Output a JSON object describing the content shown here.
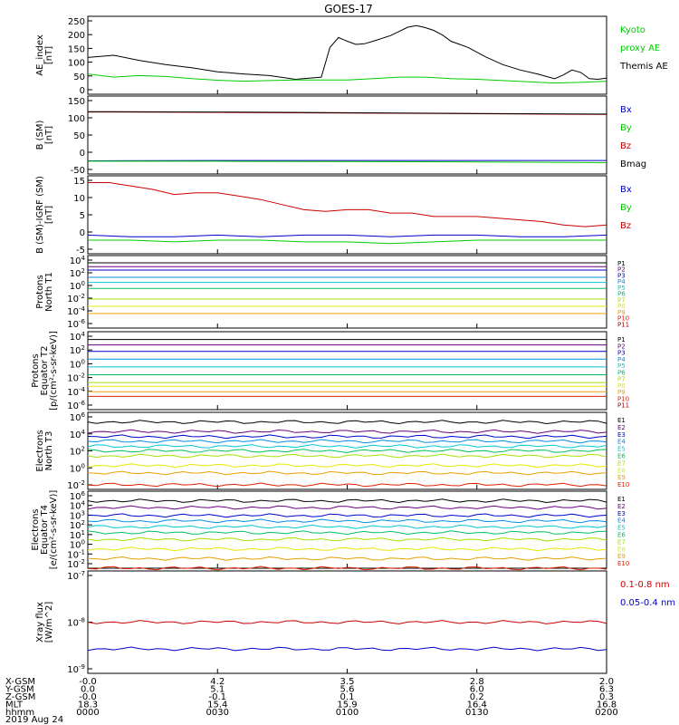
{
  "title": "GOES-17",
  "colors": {
    "black": "#000000",
    "green": "#00cc00",
    "blue": "#0000cc",
    "red": "#cc0000",
    "P1": "#000000",
    "P2": "#6a0080",
    "P3": "#0000cc",
    "P4": "#0090e0",
    "P5": "#00c8d8",
    "P6": "#00c060",
    "P7": "#a8e000",
    "P8": "#e8e800",
    "P9": "#e8a000",
    "P10": "#e02000",
    "P11": "#900000"
  },
  "panels": [
    {
      "key": "ae",
      "ylabel": [
        "AE_index",
        "[nT]"
      ],
      "yticks": [
        "250",
        "200",
        "150",
        "100",
        "50",
        "0"
      ],
      "legend": [
        {
          "text": "Kyoto",
          "color": "#00cc00"
        },
        {
          "text": "proxy AE",
          "color": "#00cc00"
        },
        {
          "text": "Themis AE",
          "color": "#000000"
        }
      ]
    },
    {
      "key": "bsm",
      "ylabel": [
        "B (SM)",
        "[nT]"
      ],
      "yticks": [
        "150",
        "100",
        "50",
        "0",
        "-50"
      ],
      "legend": [
        {
          "text": "Bx",
          "color": "#0000cc"
        },
        {
          "text": "By",
          "color": "#00cc00"
        },
        {
          "text": "Bz",
          "color": "#cc0000"
        },
        {
          "text": "Bmag",
          "color": "#000000"
        }
      ]
    },
    {
      "key": "bigrf",
      "ylabel": [
        "B (SM)-IGRF (SM)",
        "[nT]"
      ],
      "yticks": [
        "15",
        "10",
        "5",
        "0",
        "-5"
      ],
      "legend": [
        {
          "text": "Bx",
          "color": "#0000cc"
        },
        {
          "text": "By",
          "color": "#00cc00"
        },
        {
          "text": "Bz",
          "color": "#cc0000"
        }
      ]
    },
    {
      "key": "pn",
      "ylabel": [
        "Protons",
        "North T1"
      ],
      "yticks": [
        "10^4",
        "10^2",
        "10^0",
        "10^-2",
        "10^-4",
        "10^-6"
      ],
      "legend_prefix": "P"
    },
    {
      "key": "pe",
      "ylabel": [
        "Protons",
        "Equator T2",
        "[p/(cm²-s-sr-keV)]"
      ],
      "yticks": [
        "10^4",
        "10^2",
        "10^0",
        "10^-2",
        "10^-4",
        "10^-6"
      ],
      "legend_prefix": "P"
    },
    {
      "key": "en",
      "ylabel": [
        "Electrons",
        "North T3"
      ],
      "yticks": [
        "10^6",
        "10^4",
        "10^2",
        "10^0",
        "10^-2"
      ],
      "legend_prefix": "E"
    },
    {
      "key": "ee",
      "ylabel": [
        "Electrons",
        "Equator T4",
        "[e/(cm²-s-sr-keV)]"
      ],
      "yticks": [
        "10^6",
        "10^4",
        "10^3",
        "10^2",
        "10^1",
        "10^0",
        "10^-1",
        "10^-2"
      ],
      "legend_prefix": "E"
    },
    {
      "key": "xray",
      "ylabel": [
        "Xray flux",
        "[W/m^2]"
      ],
      "yticks": [
        "10^-7",
        "10^-8",
        "10^-9"
      ],
      "legend": [
        {
          "text": "0.1-0.8 nm",
          "color": "#cc0000"
        },
        {
          "text": "0.05-0.4 nm",
          "color": "#0000cc"
        }
      ]
    }
  ],
  "footer": {
    "rows": [
      {
        "label": "X-GSM",
        "values": [
          "-0.0",
          "4.2",
          "3.5",
          "2.8",
          "2.0"
        ]
      },
      {
        "label": "Y-GSM",
        "values": [
          "0.0",
          "5.1",
          "5.6",
          "6.0",
          "6.3"
        ]
      },
      {
        "label": "Z-GSM",
        "values": [
          "-0.0",
          "-0.1",
          "0.1",
          "0.2",
          "0.3"
        ]
      },
      {
        "label": "MLT",
        "values": [
          "18.3",
          "15.4",
          "15.9",
          "16.4",
          "16.8"
        ]
      },
      {
        "label": "hhmm",
        "values": [
          "0000",
          "0030",
          "0100",
          "0130",
          "0200"
        ]
      }
    ],
    "date": "2019 Aug 24"
  },
  "chart_data": [
    {
      "type": "line",
      "title": "GOES-17",
      "ylabel": "AE_index [nT]",
      "x_unit": "minutes since 0000 UT",
      "ylim": [
        0,
        250
      ],
      "series": [
        {
          "name": "Themis AE",
          "color": "#000000",
          "x": [
            0,
            6,
            12,
            18,
            24,
            30,
            36,
            42,
            48,
            54,
            56,
            58,
            60,
            62,
            64,
            66,
            70,
            74,
            76,
            78,
            80,
            82,
            84,
            88,
            92,
            96,
            100,
            104,
            108,
            110,
            112,
            114,
            116,
            118,
            120
          ],
          "y": [
            118,
            125,
            108,
            95,
            85,
            72,
            65,
            60,
            48,
            55,
            150,
            182,
            170,
            160,
            162,
            170,
            188,
            215,
            220,
            214,
            205,
            190,
            170,
            150,
            120,
            95,
            78,
            65,
            50,
            62,
            78,
            70,
            50,
            48,
            52
          ]
        },
        {
          "name": "Kyoto proxy AE",
          "color": "#00cc00",
          "x": [
            0,
            6,
            12,
            18,
            24,
            30,
            36,
            42,
            48,
            54,
            60,
            66,
            72,
            78,
            84,
            90,
            96,
            102,
            108,
            114,
            120
          ],
          "y": [
            65,
            55,
            60,
            57,
            50,
            45,
            42,
            44,
            46,
            46,
            46,
            50,
            55,
            55,
            50,
            48,
            44,
            40,
            36,
            38,
            42
          ]
        }
      ]
    },
    {
      "type": "line",
      "ylabel": "B (SM) [nT]",
      "ylim": [
        -60,
        160
      ],
      "series": [
        {
          "name": "Bz",
          "color": "#cc0000",
          "x": [
            0,
            30,
            60,
            90,
            120
          ],
          "y": [
            115,
            114,
            112,
            110,
            108
          ]
        },
        {
          "name": "Bmag",
          "color": "#000000",
          "x": [
            0,
            30,
            60,
            90,
            120
          ],
          "y": [
            116,
            115,
            113,
            111,
            109
          ]
        },
        {
          "name": "Bx",
          "color": "#0000cc",
          "x": [
            0,
            30,
            60,
            90,
            120
          ],
          "y": [
            -23,
            -22,
            -22,
            -22,
            -22
          ]
        },
        {
          "name": "By",
          "color": "#00cc00",
          "x": [
            0,
            30,
            60,
            90,
            120
          ],
          "y": [
            -24,
            -24,
            -25,
            -26,
            -28
          ]
        }
      ]
    },
    {
      "type": "line",
      "ylabel": "B (SM)-IGRF (SM) [nT]",
      "ylim": [
        -6,
        17
      ],
      "series": [
        {
          "name": "Bz",
          "color": "#cc0000",
          "x": [
            0,
            5,
            10,
            15,
            20,
            25,
            30,
            35,
            40,
            45,
            50,
            55,
            60,
            65,
            70,
            75,
            80,
            85,
            90,
            95,
            100,
            105,
            110,
            115,
            120
          ],
          "y": [
            15,
            15,
            14,
            13,
            11.5,
            12,
            12,
            11,
            10,
            8.5,
            7,
            6.5,
            7,
            7,
            6,
            6,
            5,
            5,
            5,
            4.5,
            4,
            3.5,
            2.5,
            2,
            2.5
          ]
        },
        {
          "name": "Bx",
          "color": "#0000cc",
          "x": [
            0,
            10,
            20,
            30,
            40,
            50,
            60,
            70,
            80,
            90,
            100,
            110,
            120
          ],
          "y": [
            -0.5,
            -1,
            -1,
            -0.5,
            -1,
            -0.5,
            -0.5,
            -1,
            -0.5,
            -0.5,
            -1,
            -1,
            -0.5
          ]
        },
        {
          "name": "By",
          "color": "#00cc00",
          "x": [
            0,
            10,
            20,
            30,
            40,
            50,
            60,
            70,
            80,
            90,
            100,
            110,
            120
          ],
          "y": [
            -2,
            -2,
            -2.5,
            -2,
            -2,
            -2.5,
            -2.5,
            -3,
            -2.5,
            -2,
            -2,
            -2,
            -2
          ]
        }
      ]
    },
    {
      "type": "line",
      "ylabel": "Protons North T1",
      "yscale": "log",
      "ylim": [
        "1e-6",
        "1e4"
      ],
      "series": [
        {
          "name": "P1",
          "values": [
            "1e3"
          ]
        },
        {
          "name": "P2",
          "values": [
            "3e2"
          ]
        },
        {
          "name": "P3",
          "values": [
            "1e2"
          ]
        },
        {
          "name": "P4",
          "values": [
            "1e1"
          ]
        },
        {
          "name": "P5",
          "values": [
            "2e0"
          ]
        },
        {
          "name": "P6",
          "values": [
            "3e-1"
          ]
        },
        {
          "name": "P7",
          "values": [
            "1e-2"
          ]
        },
        {
          "name": "P8",
          "values": [
            "1e-3"
          ]
        },
        {
          "name": "P9",
          "values": [
            "1e-4"
          ]
        },
        {
          "name": "P10",
          "values": []
        },
        {
          "name": "P11",
          "values": []
        }
      ]
    },
    {
      "type": "line",
      "ylabel": "Protons Equator T2 [p/(cm²-s-sr-keV)]",
      "yscale": "log",
      "ylim": [
        "1e-6",
        "1e4"
      ],
      "series": [
        {
          "name": "P1",
          "values": [
            "1e3"
          ]
        },
        {
          "name": "P2",
          "values": [
            "2e2"
          ]
        },
        {
          "name": "P3",
          "values": [
            "3e1"
          ]
        },
        {
          "name": "P4",
          "values": [
            "3e0"
          ]
        },
        {
          "name": "P5",
          "values": [
            "3e-1"
          ]
        },
        {
          "name": "P6",
          "values": [
            "3e-2"
          ]
        },
        {
          "name": "P7",
          "values": [
            "3e-3"
          ]
        },
        {
          "name": "P8",
          "values": [
            "1e-3"
          ]
        },
        {
          "name": "P9",
          "values": [
            "2e-4"
          ]
        },
        {
          "name": "P10",
          "values": [
            "5e-5"
          ]
        },
        {
          "name": "P11",
          "values": []
        }
      ]
    },
    {
      "type": "line",
      "ylabel": "Electrons North T3",
      "yscale": "log",
      "ylim": [
        "1e-2",
        "1e6"
      ],
      "series": [
        {
          "name": "E1",
          "values": [
            "1e5"
          ]
        },
        {
          "name": "E2",
          "values": [
            "1e4"
          ]
        },
        {
          "name": "E3",
          "values": [
            "3e3"
          ]
        },
        {
          "name": "E4",
          "values": [
            "1e3"
          ]
        },
        {
          "name": "E5",
          "values": [
            "3e2"
          ]
        },
        {
          "name": "E6",
          "values": [
            "1e2"
          ]
        },
        {
          "name": "E7",
          "values": [
            "3e1"
          ]
        },
        {
          "name": "E8",
          "values": [
            "3e0"
          ]
        },
        {
          "name": "E9",
          "values": [
            "5e-1"
          ]
        },
        {
          "name": "E10",
          "values": [
            "3e-2"
          ]
        }
      ]
    },
    {
      "type": "line",
      "ylabel": "Electrons Equator T4 [e/(cm²-s-sr-keV)]",
      "yscale": "log",
      "ylim": [
        "1e-2",
        "1e6"
      ],
      "series": [
        {
          "name": "E1",
          "values": [
            "1e5"
          ]
        },
        {
          "name": "E2",
          "values": [
            "2e4"
          ]
        },
        {
          "name": "E3",
          "values": [
            "3e3"
          ]
        },
        {
          "name": "E4",
          "values": [
            "8e2"
          ]
        },
        {
          "name": "E5",
          "values": [
            "2e2"
          ]
        },
        {
          "name": "E6",
          "values": [
            "5e1"
          ]
        },
        {
          "name": "E7",
          "values": [
            "1e1"
          ]
        },
        {
          "name": "E8",
          "values": [
            "1e0"
          ]
        },
        {
          "name": "E9",
          "values": [
            "1e-1"
          ]
        },
        {
          "name": "E10",
          "values": [
            "1e-2"
          ]
        }
      ]
    },
    {
      "type": "line",
      "ylabel": "Xray flux [W/m^2]",
      "yscale": "log",
      "ylim": [
        "1e-9",
        "1e-7"
      ],
      "series": [
        {
          "name": "0.1-0.8 nm",
          "color": "#cc0000",
          "values": [
            "1e-8"
          ]
        },
        {
          "name": "0.05-0.4 nm",
          "color": "#0000cc",
          "values": [
            "3e-9"
          ]
        }
      ]
    }
  ]
}
